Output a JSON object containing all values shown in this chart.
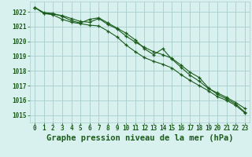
{
  "title": "Graphe pression niveau de la mer (hPa)",
  "xlim": [
    -0.5,
    23.5
  ],
  "ylim": [
    1014.5,
    1022.7
  ],
  "yticks": [
    1015,
    1016,
    1017,
    1018,
    1019,
    1020,
    1021,
    1022
  ],
  "xticks": [
    0,
    1,
    2,
    3,
    4,
    5,
    6,
    7,
    8,
    9,
    10,
    11,
    12,
    13,
    14,
    15,
    16,
    17,
    18,
    19,
    20,
    21,
    22,
    23
  ],
  "background_color": "#d8f0ee",
  "grid_color": "#a8cece",
  "line_color": "#1a5c1a",
  "line1": [
    1022.3,
    1021.9,
    1021.85,
    1021.75,
    1021.55,
    1021.35,
    1021.3,
    1021.55,
    1021.15,
    1020.85,
    1020.35,
    1019.95,
    1019.6,
    1019.3,
    1019.1,
    1018.85,
    1018.4,
    1017.9,
    1017.55,
    1016.85,
    1016.4,
    1016.1,
    1015.75,
    1015.2
  ],
  "line2": [
    1022.3,
    1021.9,
    1021.8,
    1021.5,
    1021.3,
    1021.2,
    1021.1,
    1021.05,
    1020.7,
    1020.3,
    1019.75,
    1019.3,
    1018.9,
    1018.65,
    1018.45,
    1018.2,
    1017.75,
    1017.35,
    1017.0,
    1016.65,
    1016.25,
    1016.0,
    1015.65,
    1015.15
  ],
  "line3": [
    1022.3,
    1021.95,
    1021.9,
    1021.7,
    1021.4,
    1021.25,
    1021.5,
    1021.6,
    1021.25,
    1020.9,
    1020.55,
    1020.1,
    1019.5,
    1019.1,
    1019.5,
    1018.8,
    1018.25,
    1017.7,
    1017.3,
    1016.8,
    1016.5,
    1016.2,
    1015.85,
    1015.45
  ],
  "marker": "+",
  "marker_size": 3.5,
  "marker_linewidth": 0.9,
  "linewidth": 0.8,
  "title_fontsize": 7.5,
  "tick_fontsize": 5.5
}
